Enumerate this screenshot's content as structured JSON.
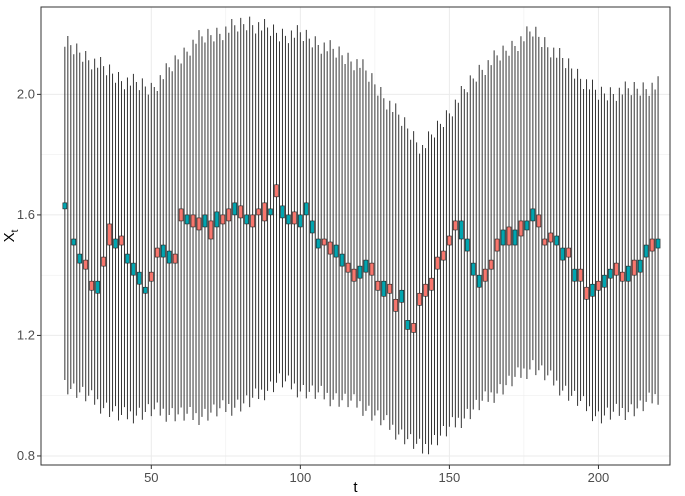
{
  "chart_data": {
    "type": "candlestick",
    "title": "",
    "xlabel": "t",
    "ylabel": "X",
    "ylabel_subscript": "t",
    "xlim": [
      13,
      224
    ],
    "ylim": [
      0.77,
      2.29
    ],
    "x_ticks": [
      50,
      100,
      150,
      200
    ],
    "x_tick_labels": [
      "50",
      "100",
      "150",
      "200"
    ],
    "y_ticks": [
      0.8,
      1.2,
      1.6,
      2.0
    ],
    "y_tick_labels": [
      "0.8",
      "1.2",
      "1.6",
      "2.0"
    ],
    "grid": true,
    "legend": "none",
    "colors": {
      "up": "#f8766d",
      "down": "#00a5b0",
      "whisker": "#333333",
      "grid": "#ebebeb",
      "border": "#333333"
    },
    "whisker_anchors": {
      "t": [
        21,
        40,
        50,
        65,
        83,
        93,
        100,
        120,
        141,
        160,
        178,
        200,
        214,
        220
      ],
      "low": [
        1.04,
        0.93,
        0.95,
        0.93,
        0.98,
        1.05,
        1.02,
        0.97,
        0.82,
        0.97,
        1.1,
        0.93,
        0.96,
        1.0
      ],
      "high": [
        2.17,
        2.05,
        2.02,
        2.18,
        2.24,
        2.2,
        2.2,
        2.1,
        1.82,
        2.08,
        2.21,
        2.0,
        2.02,
        2.03
      ]
    },
    "series": [
      {
        "t": [
          21,
          24,
          26,
          28,
          30,
          32,
          34,
          36,
          38,
          40,
          42,
          44,
          46,
          48,
          50,
          52,
          54,
          56,
          58,
          60,
          62,
          64,
          66,
          68,
          70,
          72,
          74,
          76,
          78,
          80,
          82,
          84,
          86,
          88,
          90,
          92,
          94,
          96,
          98,
          100,
          102,
          104,
          106,
          108,
          110,
          112,
          114,
          116,
          118,
          120,
          122,
          124,
          126,
          128,
          130,
          132,
          134,
          136,
          138,
          140,
          142,
          144,
          146,
          148,
          150,
          152,
          154,
          156,
          158,
          160,
          162,
          164,
          166,
          168,
          170,
          172,
          174,
          176,
          178,
          180,
          182,
          184,
          186,
          188,
          190,
          192,
          194,
          196,
          198,
          200,
          202,
          204,
          206,
          208,
          210,
          212,
          214,
          216,
          218,
          220
        ],
        "open": [
          1.64,
          1.52,
          1.47,
          1.42,
          1.35,
          1.38,
          1.43,
          1.5,
          1.52,
          1.5,
          1.47,
          1.44,
          1.41,
          1.36,
          1.38,
          1.46,
          1.5,
          1.48,
          1.44,
          1.58,
          1.6,
          1.56,
          1.55,
          1.6,
          1.52,
          1.61,
          1.57,
          1.58,
          1.64,
          1.59,
          1.6,
          1.56,
          1.6,
          1.58,
          1.62,
          1.66,
          1.63,
          1.6,
          1.57,
          1.6,
          1.64,
          1.58,
          1.52,
          1.5,
          1.47,
          1.5,
          1.47,
          1.41,
          1.38,
          1.43,
          1.45,
          1.4,
          1.35,
          1.38,
          1.34,
          1.28,
          1.35,
          1.25,
          1.21,
          1.3,
          1.33,
          1.35,
          1.42,
          1.45,
          1.5,
          1.55,
          1.58,
          1.52,
          1.44,
          1.4,
          1.38,
          1.42,
          1.48,
          1.55,
          1.5,
          1.55,
          1.53,
          1.58,
          1.62,
          1.56,
          1.5,
          1.51,
          1.53,
          1.49,
          1.46,
          1.42,
          1.38,
          1.32,
          1.37,
          1.35,
          1.4,
          1.42,
          1.4,
          1.38,
          1.43,
          1.4,
          1.45,
          1.5,
          1.48,
          1.52
        ],
        "close": [
          1.62,
          1.5,
          1.44,
          1.45,
          1.38,
          1.34,
          1.46,
          1.57,
          1.49,
          1.53,
          1.44,
          1.4,
          1.37,
          1.34,
          1.41,
          1.49,
          1.46,
          1.44,
          1.47,
          1.62,
          1.57,
          1.6,
          1.59,
          1.56,
          1.58,
          1.56,
          1.6,
          1.62,
          1.6,
          1.63,
          1.57,
          1.6,
          1.62,
          1.64,
          1.6,
          1.7,
          1.59,
          1.57,
          1.61,
          1.56,
          1.6,
          1.54,
          1.49,
          1.52,
          1.51,
          1.46,
          1.43,
          1.44,
          1.42,
          1.39,
          1.41,
          1.44,
          1.38,
          1.33,
          1.37,
          1.32,
          1.31,
          1.22,
          1.24,
          1.34,
          1.37,
          1.39,
          1.46,
          1.48,
          1.53,
          1.58,
          1.52,
          1.48,
          1.4,
          1.36,
          1.42,
          1.45,
          1.52,
          1.5,
          1.56,
          1.5,
          1.58,
          1.55,
          1.58,
          1.6,
          1.52,
          1.54,
          1.5,
          1.45,
          1.49,
          1.38,
          1.42,
          1.36,
          1.33,
          1.38,
          1.36,
          1.39,
          1.44,
          1.41,
          1.38,
          1.45,
          1.41,
          1.46,
          1.52,
          1.49
        ]
      }
    ]
  }
}
